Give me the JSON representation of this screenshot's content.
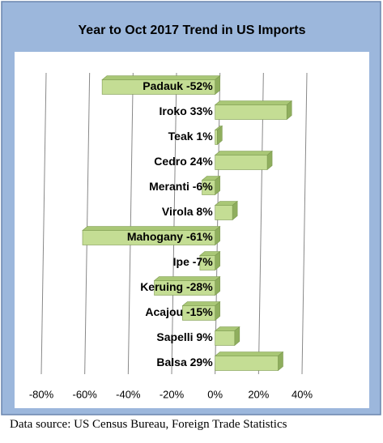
{
  "chart_data": {
    "type": "bar",
    "orientation": "horizontal",
    "title": "Year to Oct 2017 Trend in US Imports",
    "categories": [
      "Padauk -52%",
      "Iroko 33%",
      "Teak 1%",
      "Cedro 24%",
      "Meranti -6%",
      "Virola 8%",
      "Mahogany -61%",
      "Ipe -7%",
      "Keruing -28%",
      "Acajou -15%",
      "Sapelli 9%",
      "Balsa 29%"
    ],
    "values": [
      -52,
      33,
      1,
      24,
      -6,
      8,
      -61,
      -7,
      -28,
      -15,
      9,
      29
    ],
    "color": "#c4dd94",
    "xlim": [
      -80,
      40
    ],
    "xticks": [
      {
        "value": -80,
        "label": "-80%"
      },
      {
        "value": -60,
        "label": "-60%"
      },
      {
        "value": -40,
        "label": "-40%"
      },
      {
        "value": -20,
        "label": "-20%"
      },
      {
        "value": 0,
        "label": "0%"
      },
      {
        "value": 20,
        "label": "20%"
      },
      {
        "value": 40,
        "label": "40%"
      }
    ],
    "grid": true
  },
  "source": "Data source:  US Census Bureau, Foreign Trade Statistics"
}
